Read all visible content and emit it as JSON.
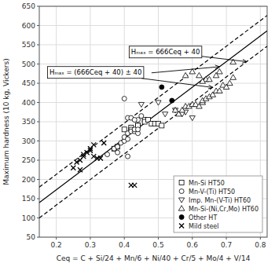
{
  "chart_data": {
    "type": "scatter",
    "xlabel": "Ceq = C + Si/24 + Mn/6 + Ni/40 + Cr/5 + Mo/4 + V/14",
    "ylabel": "Maximum hardness (10 kg, Vickers)",
    "xlim": [
      0.15,
      0.82
    ],
    "ylim": [
      50,
      650
    ],
    "xticks": [
      0.2,
      0.3,
      0.4,
      0.5,
      0.6,
      0.7,
      0.8
    ],
    "yticks": [
      50,
      100,
      150,
      200,
      250,
      300,
      350,
      400,
      450,
      500,
      550,
      600,
      650
    ],
    "grid": true,
    "legend": "lower right",
    "series": [
      {
        "type": "line",
        "line_style": "solid",
        "color": "black",
        "x": [
          0.15,
          0.82
        ],
        "values": [
          139.9,
          586.12
        ]
      },
      {
        "type": "line",
        "line_style": "dashed",
        "color": "black",
        "x": [
          0.15,
          0.82
        ],
        "values": [
          179.9,
          626.12
        ]
      },
      {
        "type": "line",
        "line_style": "dashed",
        "color": "black",
        "x": [
          0.15,
          0.82
        ],
        "values": [
          99.9,
          546.12
        ]
      },
      {
        "name": "Mn-Si HT50",
        "type": "scatter",
        "marker": "square",
        "color": "black",
        "x": [
          0.37,
          0.4,
          0.42,
          0.44,
          0.46,
          0.46,
          0.47,
          0.48,
          0.49,
          0.5,
          0.51,
          0.38,
          0.42,
          0.44
        ],
        "values": [
          280,
          330,
          330,
          340,
          355,
          350,
          355,
          345,
          345,
          345,
          340,
          285,
          335,
          340
        ]
      },
      {
        "name": "Mn-V-(Ti) HT50",
        "type": "scatter",
        "marker": "circle",
        "color": "black",
        "x": [
          0.35,
          0.37,
          0.38,
          0.38,
          0.39,
          0.4,
          0.4,
          0.41,
          0.41,
          0.42,
          0.42,
          0.43,
          0.43,
          0.44,
          0.44,
          0.44,
          0.45,
          0.4,
          0.41,
          0.42,
          0.43,
          0.41
        ],
        "values": [
          265,
          280,
          285,
          270,
          295,
          300,
          310,
          305,
          320,
          330,
          325,
          325,
          330,
          320,
          330,
          355,
          365,
          410,
          360,
          360,
          355,
          260
        ]
      },
      {
        "name": "Imp. Mn-(V-Ti) HT60",
        "type": "scatter",
        "marker": "triangle-down",
        "color": "black",
        "x": [
          0.45,
          0.5,
          0.52,
          0.55,
          0.57,
          0.58,
          0.6
        ],
        "values": [
          395,
          400,
          370,
          380,
          370,
          375,
          360
        ]
      },
      {
        "name": "Mn-Si-(Ni,Cr,Mo) HT60",
        "type": "scatter",
        "marker": "triangle-up",
        "color": "black",
        "x": [
          0.55,
          0.56,
          0.57,
          0.58,
          0.59,
          0.6,
          0.61,
          0.62,
          0.63,
          0.63,
          0.64,
          0.65,
          0.66,
          0.67,
          0.68,
          0.69,
          0.7,
          0.71,
          0.72,
          0.58,
          0.6,
          0.62,
          0.64,
          0.68,
          0.72,
          0.63,
          0.65,
          0.67
        ],
        "values": [
          380,
          370,
          380,
          390,
          390,
          395,
          395,
          390,
          400,
          405,
          410,
          415,
          420,
          430,
          430,
          445,
          440,
          450,
          465,
          470,
          480,
          470,
          460,
          480,
          505,
          455,
          460,
          470
        ]
      },
      {
        "name": "Other HT",
        "type": "scatter",
        "marker": "filled-circle",
        "color": "black",
        "x": [
          0.51,
          0.54
        ],
        "values": [
          440,
          405
        ]
      },
      {
        "name": "Mild steel",
        "type": "scatter",
        "marker": "x",
        "color": "black",
        "x": [
          0.25,
          0.26,
          0.27,
          0.27,
          0.28,
          0.28,
          0.29,
          0.3,
          0.3,
          0.31,
          0.31,
          0.32,
          0.33,
          0.34,
          0.42,
          0.43
        ],
        "values": [
          230,
          245,
          225,
          250,
          260,
          265,
          270,
          275,
          280,
          290,
          260,
          255,
          255,
          295,
          185,
          185
        ]
      }
    ],
    "annotations": [
      {
        "text": "Hₘₐₓ = 666Ceq + 40",
        "x": 0.42,
        "y": 525,
        "arrows": [
          {
            "x": 0.76,
            "y": 506
          }
        ]
      },
      {
        "text": "Hₘₐₓ = (666Ceq + 40) ± 40",
        "x": 0.18,
        "y": 472,
        "arrows": [
          {
            "x": 0.66,
            "y": 439
          },
          {
            "x_from": 0.48,
            "y_from": 477,
            "x": 0.68,
            "y": 493
          }
        ]
      }
    ]
  }
}
